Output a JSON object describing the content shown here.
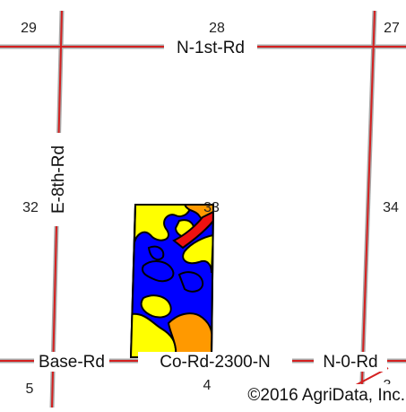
{
  "map": {
    "sections": [
      "29",
      "28",
      "27",
      "32",
      "33",
      "34",
      "5",
      "4",
      "3"
    ],
    "roads": {
      "north": "N-1st-Rd",
      "west": "E-8th-Rd",
      "south_west": "Base-Rd",
      "south_mid": "Co-Rd-2300-N",
      "south_east": "N-0-Rd"
    },
    "copyright": "©2016 AgriData, Inc.",
    "colors": {
      "road": "#d42020",
      "road_casing": "#a9a9a9",
      "field_base": "#0000ff",
      "soil_yellow": "#ffff00",
      "soil_orange": "#ff9900",
      "soil_red": "#ee1111"
    }
  }
}
